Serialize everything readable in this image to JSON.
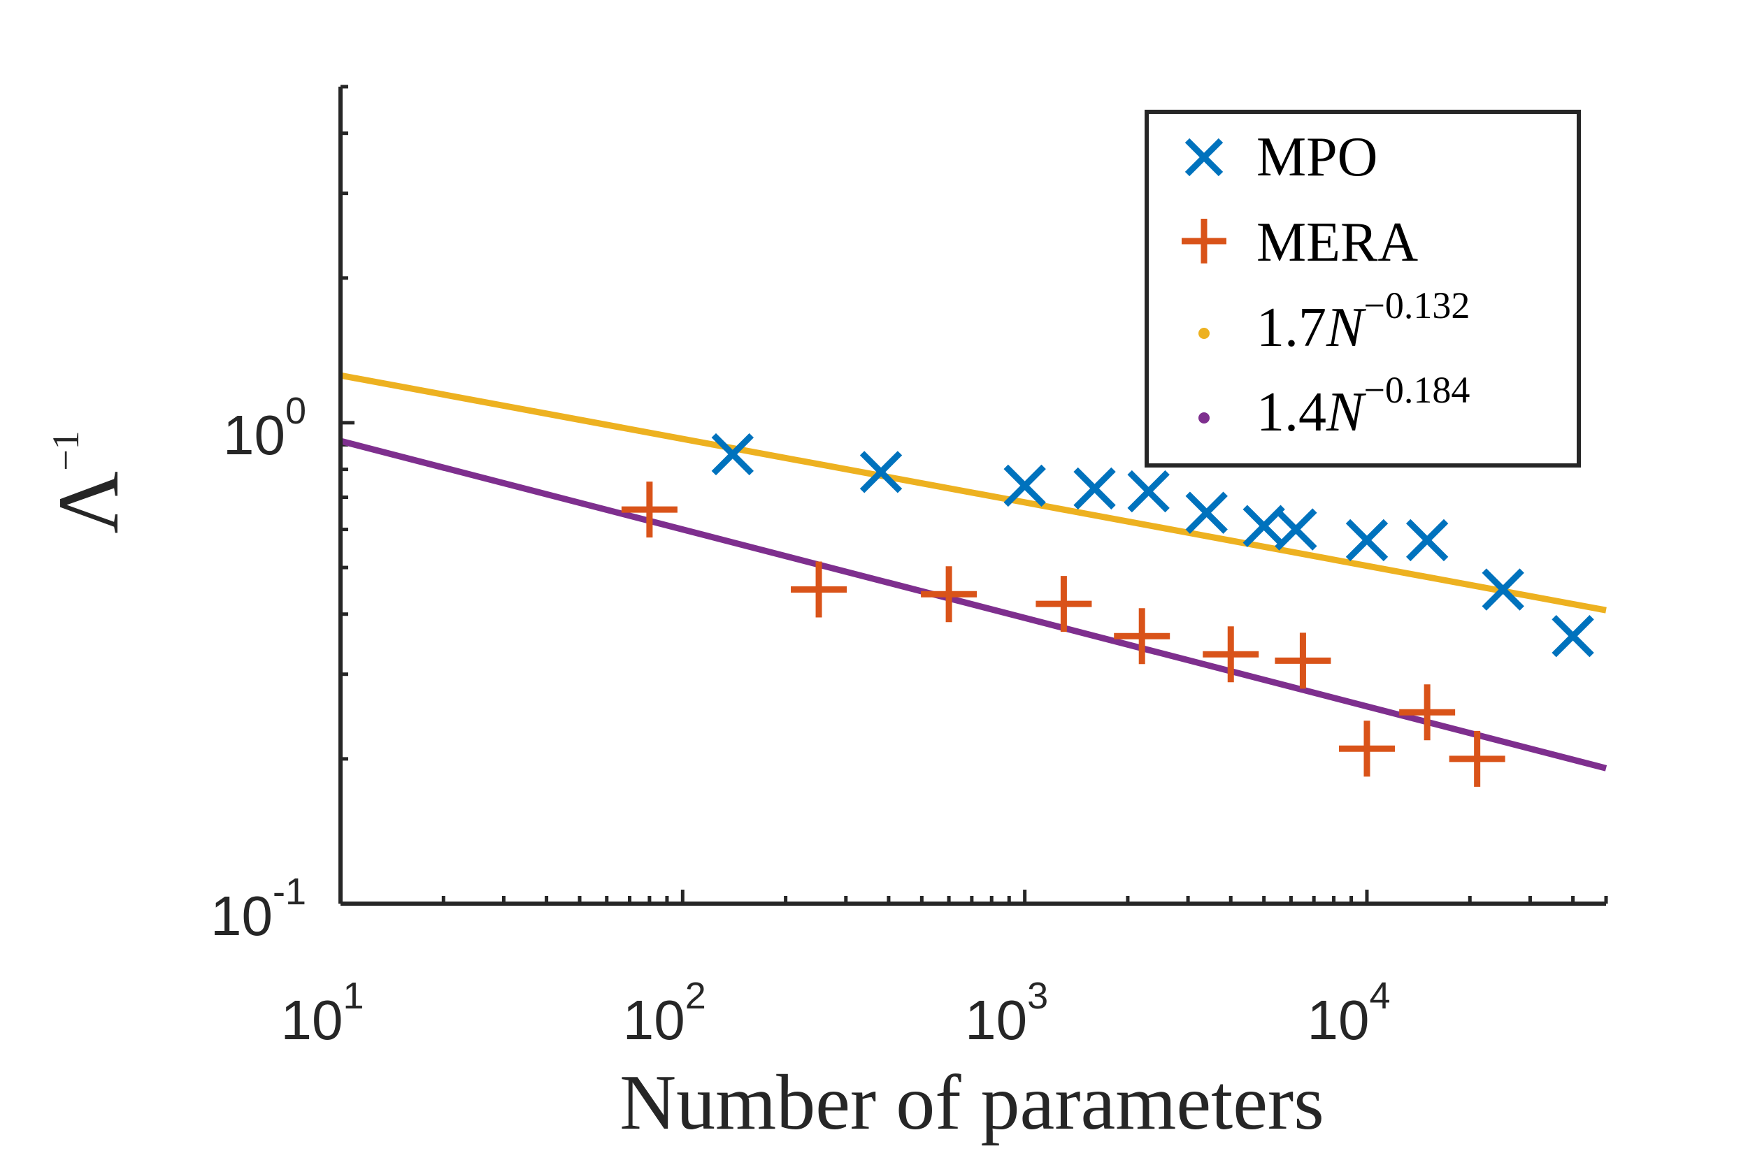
{
  "chart_data": {
    "type": "scatter",
    "xscale": "log",
    "yscale": "log",
    "xlim": [
      10,
      50000
    ],
    "ylim": [
      0.1,
      5
    ],
    "xlabel": "Number of parameters",
    "ylabel": "Λ",
    "ylabel_sup": "−1",
    "xticks": [
      {
        "value": 10,
        "base": "10",
        "exp": "1"
      },
      {
        "value": 100,
        "base": "10",
        "exp": "2"
      },
      {
        "value": 1000,
        "base": "10",
        "exp": "3"
      },
      {
        "value": 10000,
        "base": "10",
        "exp": "4"
      }
    ],
    "yticks": [
      {
        "value": 0.1,
        "base": "10",
        "exp": "-1"
      },
      {
        "value": 1,
        "base": "10",
        "exp": "0"
      }
    ],
    "grid": false,
    "legend_position": "top-right",
    "series": [
      {
        "name": "MPO",
        "marker": "x",
        "color": "#0072BD",
        "points": [
          [
            140,
            0.86
          ],
          [
            380,
            0.79
          ],
          [
            1000,
            0.74
          ],
          [
            1600,
            0.73
          ],
          [
            2300,
            0.72
          ],
          [
            3400,
            0.65
          ],
          [
            5000,
            0.61
          ],
          [
            6200,
            0.6
          ],
          [
            10000,
            0.57
          ],
          [
            15000,
            0.57
          ],
          [
            25000,
            0.45
          ],
          [
            40000,
            0.36
          ]
        ]
      },
      {
        "name": "MERA",
        "marker": "+",
        "color": "#D95319",
        "points": [
          [
            80,
            0.66
          ],
          [
            250,
            0.45
          ],
          [
            600,
            0.44
          ],
          [
            1300,
            0.42
          ],
          [
            2200,
            0.36
          ],
          [
            4000,
            0.33
          ],
          [
            6500,
            0.32
          ],
          [
            10000,
            0.21
          ],
          [
            15000,
            0.25
          ],
          [
            21000,
            0.2
          ]
        ]
      },
      {
        "name": "fit-mpo",
        "legend_coef": "1.7",
        "legend_var": "N",
        "legend_exp": "−0.132",
        "marker": "line",
        "color": "#EDB120",
        "coef": 1.7,
        "exponent": -0.132
      },
      {
        "name": "fit-mera",
        "legend_coef": "1.4",
        "legend_var": "N",
        "legend_exp": "−0.184",
        "marker": "line",
        "color": "#7E2F8E",
        "coef": 1.4,
        "exponent": -0.184
      }
    ]
  }
}
